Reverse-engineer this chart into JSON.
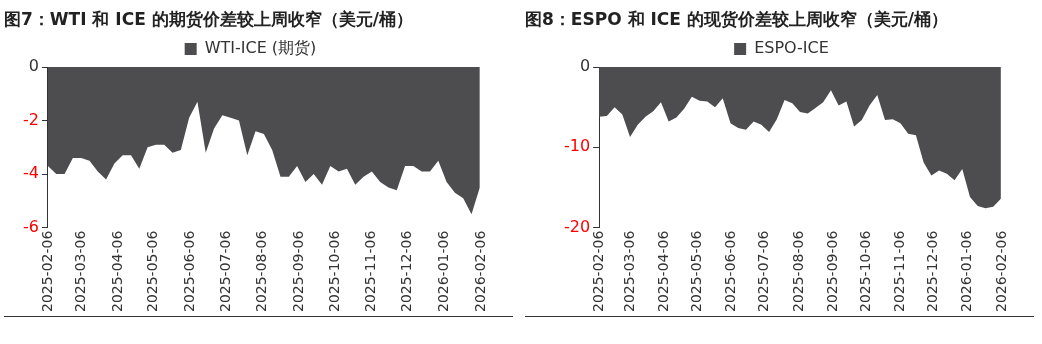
{
  "chart_data": [
    {
      "type": "area",
      "title": "图7：WTI 和 ICE 的期货价差较上周收窄（美元/桶）",
      "x": [
        "2025-02-06",
        "2025-02-13",
        "2025-02-20",
        "2025-02-27",
        "2025-03-06",
        "2025-03-13",
        "2025-03-20",
        "2025-03-27",
        "2025-04-03",
        "2025-04-10",
        "2025-04-17",
        "2025-04-24",
        "2025-05-01",
        "2025-05-08",
        "2025-05-15",
        "2025-05-22",
        "2025-05-29",
        "2025-06-05",
        "2025-06-12",
        "2025-06-19",
        "2025-06-26",
        "2025-07-03",
        "2025-07-10",
        "2025-07-17",
        "2025-07-24",
        "2025-07-31",
        "2025-08-07",
        "2025-08-14",
        "2025-08-21",
        "2025-08-28",
        "2025-09-04",
        "2025-09-11",
        "2025-09-18",
        "2025-09-25",
        "2025-10-02",
        "2025-10-09",
        "2025-10-16",
        "2025-10-23",
        "2025-10-30",
        "2025-11-06",
        "2025-11-13",
        "2025-11-20",
        "2025-11-27",
        "2025-12-04",
        "2025-12-11",
        "2025-12-18",
        "2025-12-25",
        "2026-01-01",
        "2026-01-08",
        "2026-01-15",
        "2026-01-22",
        "2026-01-29",
        "2026-02-05"
      ],
      "series": [
        {
          "name": "WTI-ICE (期货)",
          "color": "#4d4d4f",
          "values": [
            -3.7,
            -4.0,
            -4.0,
            -3.4,
            -3.4,
            -3.5,
            -3.9,
            -4.2,
            -3.6,
            -3.3,
            -3.3,
            -3.8,
            -3.0,
            -2.9,
            -2.9,
            -3.2,
            -3.1,
            -1.9,
            -1.3,
            -3.2,
            -2.3,
            -1.8,
            -1.9,
            -2.0,
            -3.3,
            -2.4,
            -2.5,
            -3.1,
            -4.1,
            -4.1,
            -3.7,
            -4.3,
            -4.0,
            -4.4,
            -3.7,
            -3.9,
            -3.8,
            -4.4,
            -4.1,
            -3.9,
            -4.3,
            -4.5,
            -4.6,
            -3.7,
            -3.7,
            -3.9,
            -3.9,
            -3.5,
            -4.3,
            -4.7,
            -4.9,
            -5.5,
            -4.5
          ]
        }
      ],
      "xlim": [
        "2025-02-06",
        "2026-02-06"
      ],
      "xticks": [
        "2025-02-06",
        "2025-03-06",
        "2025-04-06",
        "2025-05-06",
        "2025-06-06",
        "2025-07-06",
        "2025-08-06",
        "2025-09-06",
        "2025-10-06",
        "2025-11-06",
        "2025-12-06",
        "2026-01-06",
        "2026-02-06"
      ],
      "ylim": [
        -6,
        0
      ],
      "yticks": [
        -6,
        -4,
        -2,
        0
      ],
      "grid": false,
      "legend": "top"
    },
    {
      "type": "area",
      "title": "图8：ESPO 和 ICE 的现货价差较上周收窄（美元/桶）",
      "x": [
        "2025-02-06",
        "2025-02-13",
        "2025-02-20",
        "2025-02-27",
        "2025-03-06",
        "2025-03-13",
        "2025-03-20",
        "2025-03-27",
        "2025-04-03",
        "2025-04-10",
        "2025-04-17",
        "2025-04-24",
        "2025-05-01",
        "2025-05-08",
        "2025-05-15",
        "2025-05-22",
        "2025-05-29",
        "2025-06-05",
        "2025-06-12",
        "2025-06-19",
        "2025-06-26",
        "2025-07-03",
        "2025-07-10",
        "2025-07-17",
        "2025-07-24",
        "2025-07-31",
        "2025-08-07",
        "2025-08-14",
        "2025-08-21",
        "2025-08-28",
        "2025-09-04",
        "2025-09-11",
        "2025-09-18",
        "2025-09-25",
        "2025-10-02",
        "2025-10-09",
        "2025-10-16",
        "2025-10-23",
        "2025-10-30",
        "2025-11-06",
        "2025-11-13",
        "2025-11-20",
        "2025-11-27",
        "2025-12-04",
        "2025-12-11",
        "2025-12-18",
        "2025-12-25",
        "2026-01-01",
        "2026-01-08",
        "2026-01-15",
        "2026-01-22",
        "2026-01-29",
        "2026-02-05"
      ],
      "series": [
        {
          "name": "ESPO-ICE",
          "color": "#4d4d4f",
          "values": [
            -6.2,
            -6.1,
            -5.0,
            -5.9,
            -8.7,
            -7.2,
            -6.2,
            -5.5,
            -4.4,
            -6.8,
            -6.3,
            -5.2,
            -3.7,
            -4.2,
            -4.3,
            -5.0,
            -3.9,
            -7.0,
            -7.6,
            -7.8,
            -6.8,
            -7.2,
            -8.1,
            -6.5,
            -4.1,
            -4.5,
            -5.6,
            -5.8,
            -5.1,
            -4.4,
            -2.9,
            -4.8,
            -4.3,
            -7.4,
            -6.6,
            -4.8,
            -3.5,
            -6.6,
            -6.5,
            -7.0,
            -8.3,
            -8.5,
            -11.9,
            -13.5,
            -12.9,
            -13.3,
            -14.1,
            -12.7,
            -16.2,
            -17.3,
            -17.6,
            -17.4,
            -16.4
          ]
        }
      ],
      "xlim": [
        "2025-02-06",
        "2026-02-06"
      ],
      "xticks": [
        "2025-02-06",
        "2025-03-06",
        "2025-04-06",
        "2025-05-06",
        "2025-06-06",
        "2025-07-06",
        "2025-08-06",
        "2025-09-06",
        "2025-10-06",
        "2025-11-06",
        "2025-12-06",
        "2026-01-06",
        "2026-02-06"
      ],
      "ylim": [
        -20,
        0
      ],
      "yticks": [
        -20,
        -10,
        0
      ],
      "grid": false,
      "legend": "top"
    }
  ]
}
